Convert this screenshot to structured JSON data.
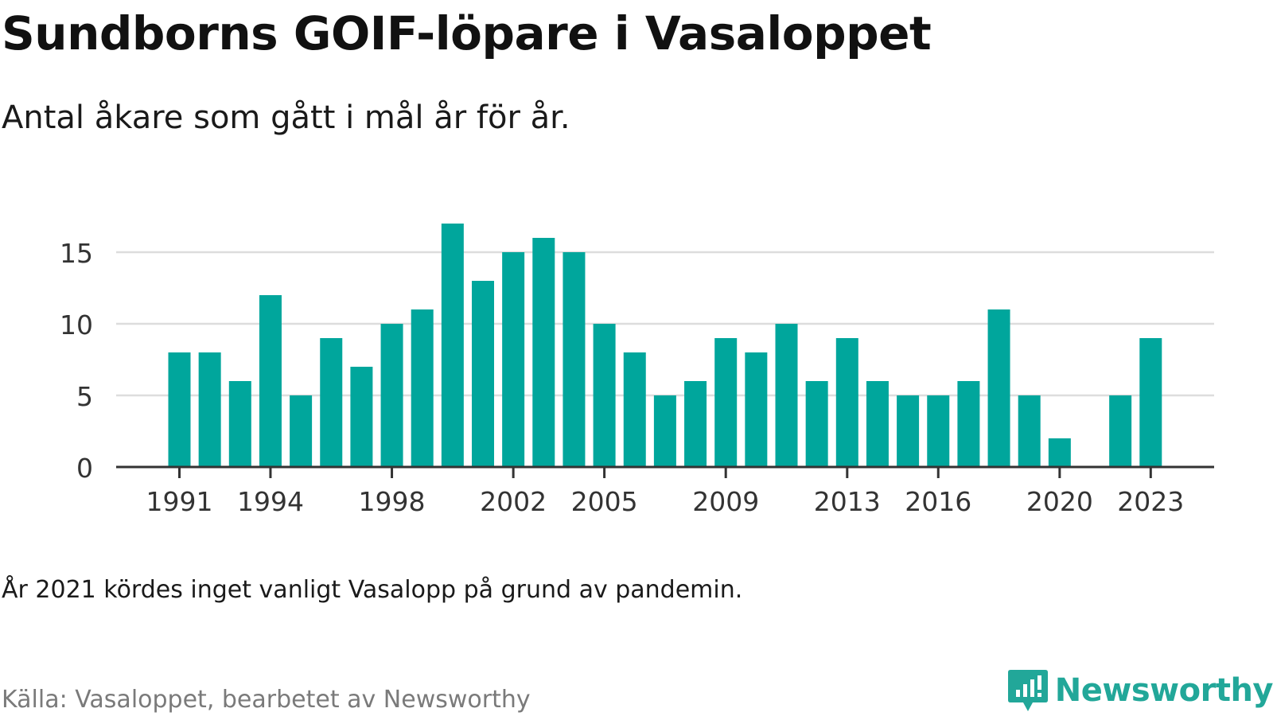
{
  "header": {
    "title": "Sundborns GOIF-löpare i Vasaloppet",
    "subtitle": "Antal åkare som gått i mål år för år."
  },
  "footer": {
    "note": "År 2021 kördes inget vanligt Vasalopp på grund av pandemin.",
    "source": "Källa: Vasaloppet, bearbetet av Newsworthy",
    "brand": "Newsworthy",
    "brand_logo_icon": "bar-chart-speech-bubble-icon"
  },
  "colors": {
    "bar": "#00a69c",
    "axis": "#333333",
    "grid": "#dddddd",
    "tick_text": "#333333",
    "brand": "#22a799"
  },
  "chart_data": {
    "type": "bar",
    "title": "Sundborns GOIF-löpare i Vasaloppet",
    "subtitle": "Antal åkare som gått i mål år för år.",
    "xlabel": "",
    "ylabel": "",
    "categories": [
      1991,
      1992,
      1993,
      1994,
      1995,
      1996,
      1997,
      1998,
      1999,
      2000,
      2001,
      2002,
      2003,
      2004,
      2005,
      2006,
      2007,
      2008,
      2009,
      2010,
      2011,
      2012,
      2013,
      2014,
      2015,
      2016,
      2017,
      2018,
      2019,
      2020,
      2021,
      2022,
      2023
    ],
    "values": [
      8,
      8,
      6,
      12,
      5,
      9,
      7,
      10,
      11,
      17,
      13,
      15,
      16,
      15,
      10,
      8,
      5,
      6,
      9,
      8,
      10,
      6,
      9,
      6,
      5,
      5,
      6,
      11,
      5,
      2,
      null,
      5,
      9
    ],
    "x_tick_labels": [
      "1991",
      "1994",
      "1998",
      "2002",
      "2005",
      "2009",
      "2013",
      "2016",
      "2020",
      "2023"
    ],
    "y_ticks": [
      0,
      5,
      10,
      15
    ],
    "ylim": [
      0,
      17
    ],
    "grid": true,
    "legend": "none"
  }
}
